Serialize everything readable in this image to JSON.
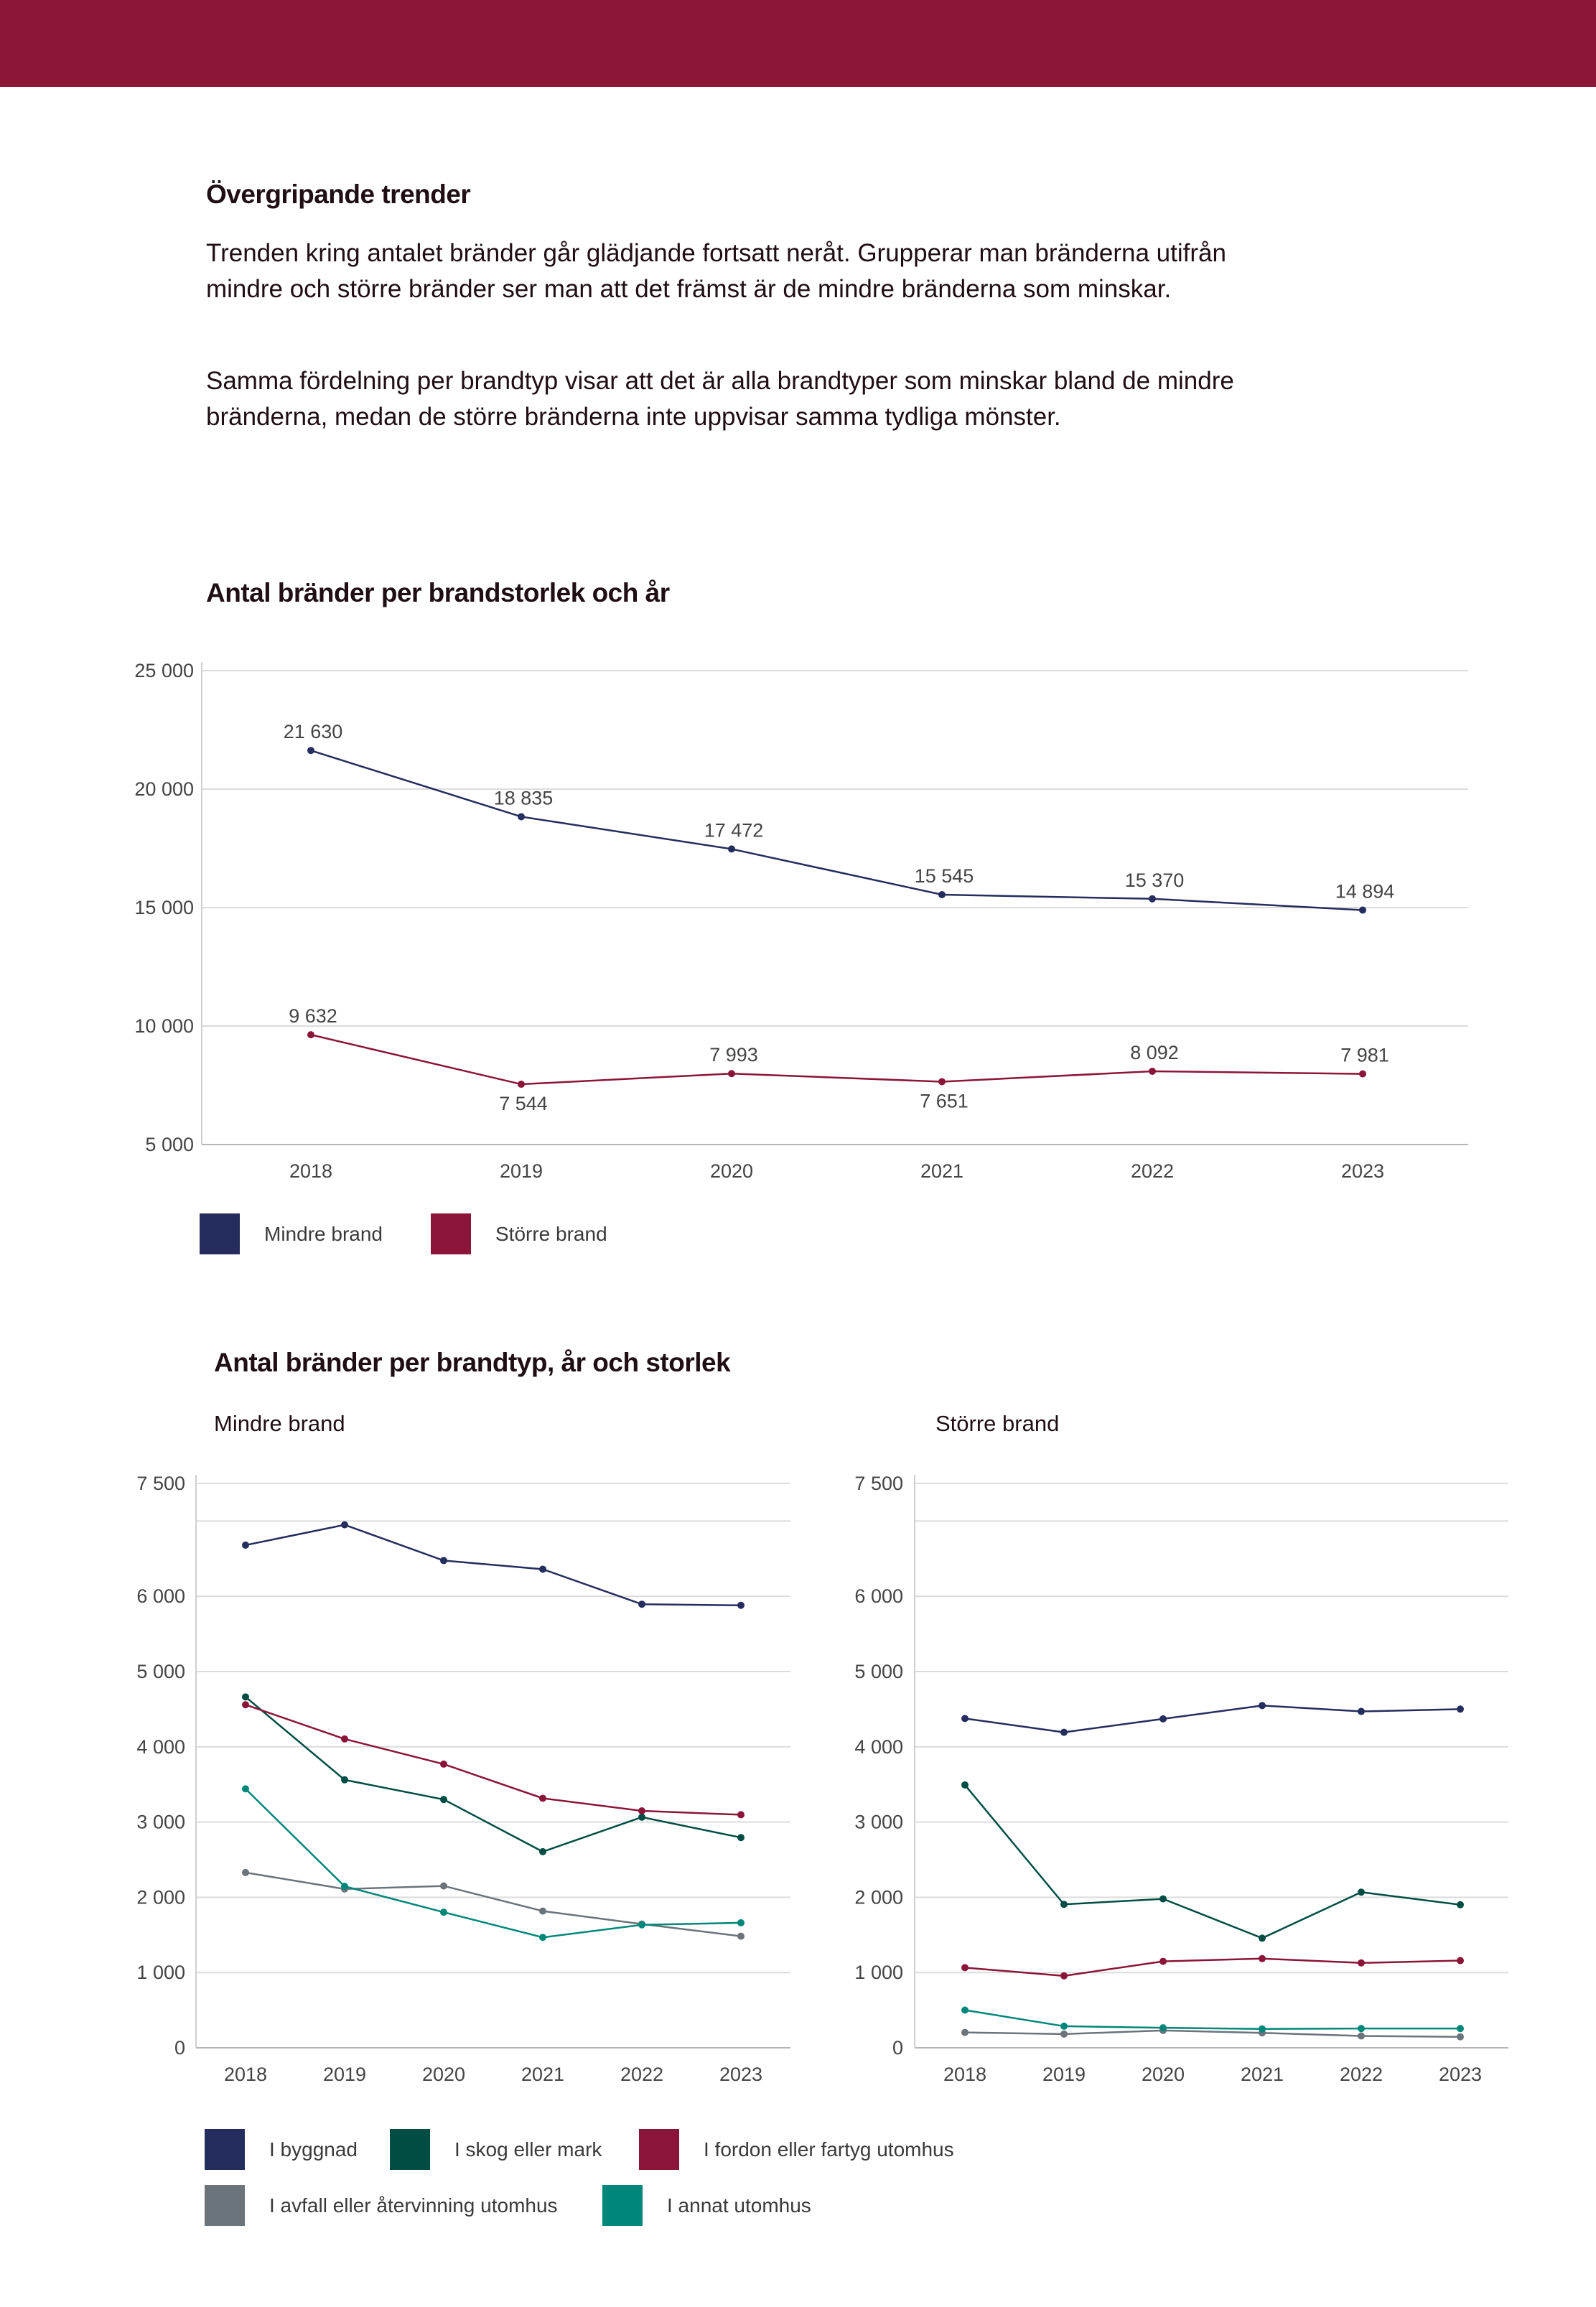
{
  "colors": {
    "header": "#8c1538",
    "mindre": "#242d5e",
    "storre": "#8b1538",
    "byggnad": "#242d5e",
    "skog": "#014d44",
    "fordon": "#8b1538",
    "avfall": "#6b737b",
    "annat": "#00877a"
  },
  "text": {
    "section_title": "Övergripande trender",
    "paragraph1": "Trenden kring antalet bränder går glädjande fortsatt neråt. Grupperar man bränderna utifrån mindre och större bränder ser man att det främst är de mindre bränderna som minskar.",
    "paragraph2": "Samma fördelning per brandtyp visar att det är alla brandtyper som minskar bland de mindre bränderna, medan de större bränderna inte uppvisar samma tydliga mönster."
  },
  "chart_data": [
    {
      "type": "line",
      "title": "Antal bränder per brandstorlek och år",
      "x": [
        "2018",
        "2019",
        "2020",
        "2021",
        "2022",
        "2023"
      ],
      "ylim": [
        5000,
        25000
      ],
      "yticks": [
        5000,
        10000,
        15000,
        20000,
        25000
      ],
      "ytick_labels": [
        "5 000",
        "10 000",
        "15 000",
        "20 000",
        "25 000"
      ],
      "grid": true,
      "legend": "bottom-left",
      "series": [
        {
          "name": "Mindre brand",
          "color": "#242d5e",
          "values": [
            21630,
            18835,
            17472,
            15545,
            15370,
            14894
          ],
          "labels": [
            "21 630",
            "18 835",
            "17 472",
            "15 545",
            "15 370",
            "14 894"
          ]
        },
        {
          "name": "Större brand",
          "color": "#8b1538",
          "values": [
            9632,
            7544,
            7993,
            7651,
            8092,
            7981
          ],
          "labels": [
            "9 632",
            "7 544",
            "7 993",
            "7 651",
            "8 092",
            "7 981"
          ]
        }
      ]
    },
    {
      "type": "line",
      "title": "Antal bränder per brandtyp, år och storlek",
      "subtitle": "Mindre brand",
      "x": [
        "2018",
        "2019",
        "2020",
        "2021",
        "2022",
        "2023"
      ],
      "ylim": [
        0,
        7500
      ],
      "yticks": [
        0,
        1000,
        2000,
        3000,
        4000,
        5000,
        6000,
        7500
      ],
      "ytick_labels": [
        "0",
        "1 000",
        "2 000",
        "3 000",
        "4 000",
        "5 000",
        "6 000",
        "7 500"
      ],
      "grid": true,
      "legend": "bottom-left",
      "series": [
        {
          "name": "I byggnad",
          "color": "#242d5e",
          "values": [
            6680,
            6950,
            6475,
            6360,
            5895,
            5880
          ]
        },
        {
          "name": "I skog eller mark",
          "color": "#014d44",
          "values": [
            4663,
            3561,
            3300,
            2606,
            3065,
            2794
          ]
        },
        {
          "name": "I fordon eller fartyg utomhus",
          "color": "#8b1538",
          "values": [
            4559,
            4104,
            3770,
            3316,
            3149,
            3097
          ]
        },
        {
          "name": "I avfall eller återvinning utomhus",
          "color": "#6b737b",
          "values": [
            2329,
            2110,
            2151,
            1817,
            1645,
            1483
          ]
        },
        {
          "name": "I annat utomhus",
          "color": "#00877a",
          "values": [
            3441,
            2146,
            1802,
            1467,
            1634,
            1661
          ]
        }
      ]
    },
    {
      "type": "line",
      "subtitle": "Större brand",
      "x": [
        "2018",
        "2019",
        "2020",
        "2021",
        "2022",
        "2023"
      ],
      "ylim": [
        0,
        7500
      ],
      "yticks": [
        0,
        1000,
        2000,
        3000,
        4000,
        5000,
        6000,
        7500
      ],
      "ytick_labels": [
        "0",
        "1 000",
        "2 000",
        "3 000",
        "4 000",
        "5 000",
        "6 000",
        "7 500"
      ],
      "grid": true,
      "legend": "bottom-left",
      "series": [
        {
          "name": "I byggnad",
          "color": "#242d5e",
          "values": [
            4376,
            4193,
            4371,
            4548,
            4470,
            4501
          ]
        },
        {
          "name": "I skog eller mark",
          "color": "#014d44",
          "values": [
            3493,
            1906,
            1979,
            1457,
            2068,
            1901
          ]
        },
        {
          "name": "I fordon eller fartyg utomhus",
          "color": "#8b1538",
          "values": [
            1065,
            956,
            1149,
            1185,
            1128,
            1159
          ]
        },
        {
          "name": "I avfall eller återvinning utomhus",
          "color": "#6b737b",
          "values": [
            204,
            183,
            230,
            198,
            157,
            146
          ]
        },
        {
          "name": "I annat utomhus",
          "color": "#00877a",
          "values": [
            501,
            287,
            266,
            251,
            256,
            256
          ]
        }
      ]
    }
  ]
}
